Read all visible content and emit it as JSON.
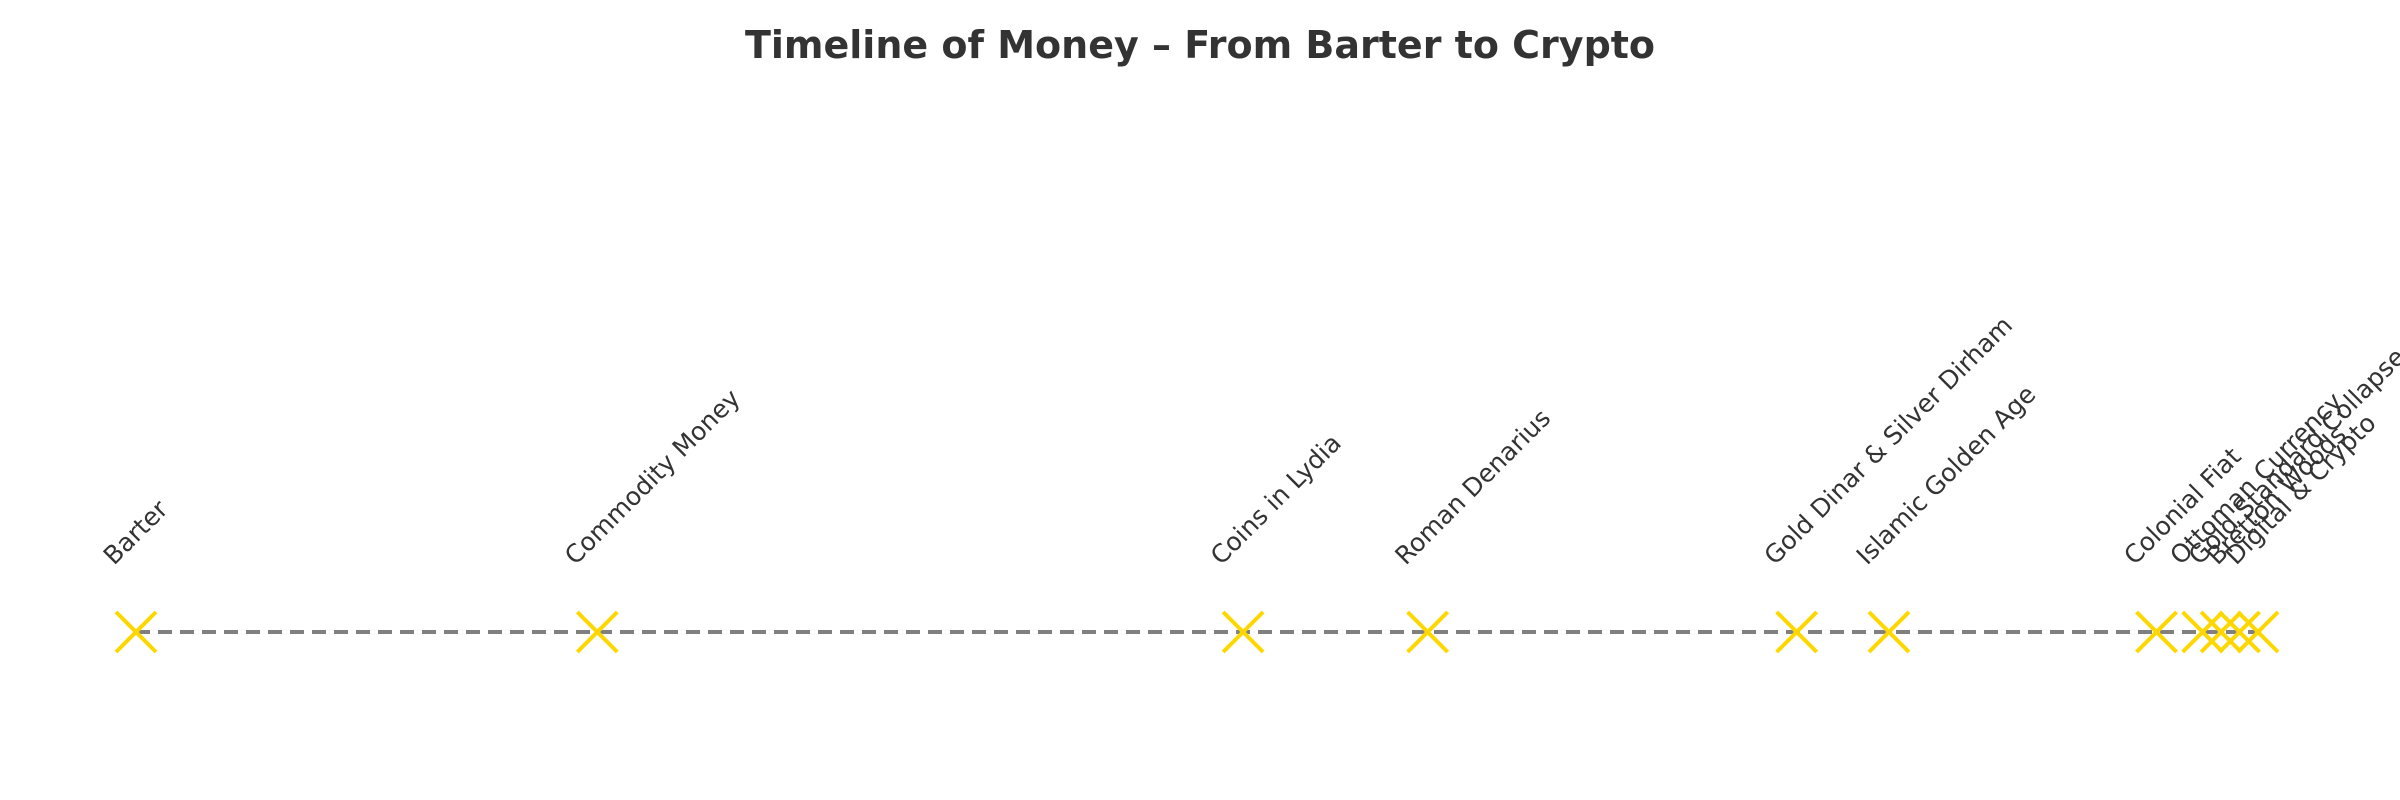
{
  "chart_data": {
    "type": "scatter",
    "title": "Timeline of Money – From Barter to Crypto",
    "xlabel": "",
    "ylabel": "",
    "grid": false,
    "axes_visible": false,
    "xlim": [
      -10000,
      2050
    ],
    "baseline_style": "dashed",
    "marker": "x",
    "colors": {
      "marker": "#FFD700",
      "baseline": "#808080",
      "text": "#333333"
    },
    "events": [
      {
        "label": "Barter",
        "year": -9500
      },
      {
        "label": "Commodity Money",
        "year": -7000
      },
      {
        "label": "Coins in Lydia",
        "year": -3500
      },
      {
        "label": "Roman Denarius",
        "year": -2500
      },
      {
        "label": "Gold Dinar & Silver Dirham",
        "year": -500
      },
      {
        "label": "Islamic Golden Age",
        "year": 0
      },
      {
        "label": "Ottoman Currency",
        "year": 1700
      },
      {
        "label": "Colonial Fiat",
        "year": 1450
      },
      {
        "label": "Gold Standard Collapse",
        "year": 1800
      },
      {
        "label": "Bretton Woods",
        "year": 1900
      },
      {
        "label": "Digital & Crypto",
        "year": 2000
      }
    ]
  }
}
